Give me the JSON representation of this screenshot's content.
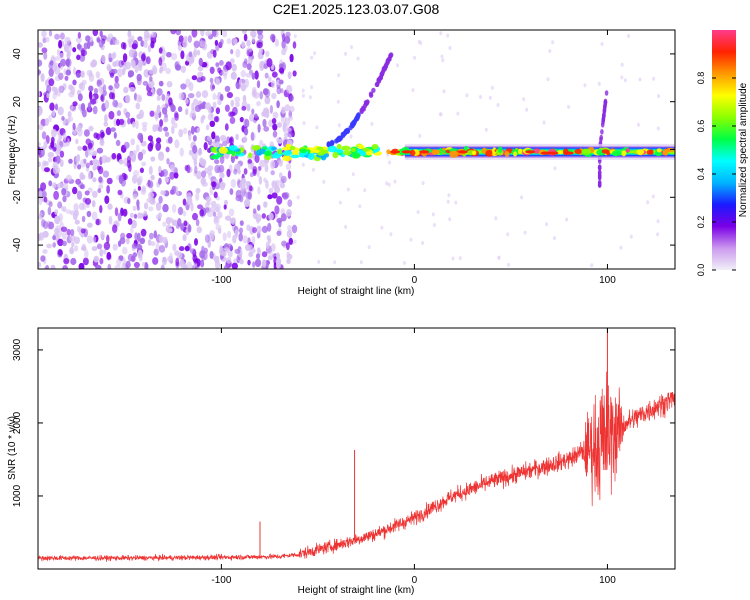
{
  "figure_title": "C2E1.2025.123.03.07.G08",
  "chart_data": [
    {
      "type": "heatmap",
      "title": "C2E1.2025.123.03.07.G08",
      "xlabel": "Height of straight line (km)",
      "ylabel": "Frequency (Hz)",
      "xlim": [
        -195,
        135
      ],
      "ylim": [
        -50,
        50
      ],
      "xticks": [
        -100,
        0,
        100
      ],
      "xtick_labels": [
        "-100",
        "0",
        "100"
      ],
      "yticks": [
        -40,
        -20,
        0,
        20,
        40
      ],
      "ytick_labels": [
        "-40",
        "-20",
        "0",
        "20",
        "40"
      ],
      "colorbar": {
        "label": "Normalized spectral amplitude",
        "range": [
          0,
          1
        ],
        "ticks": [
          0.0,
          0.2,
          0.4,
          0.6,
          0.8
        ],
        "tick_labels": [
          "0.0",
          "0.2",
          "0.4",
          "0.6",
          "0.8"
        ],
        "colors": [
          "#f0f0f8",
          "#cc99ee",
          "#7a00e6",
          "#1a1aff",
          "#00b4ff",
          "#00ffff",
          "#00ff44",
          "#8cff00",
          "#ffff00",
          "#ff9900",
          "#ff2200",
          "#ff3c8c"
        ]
      },
      "features": [
        {
          "name": "scattered noise",
          "x_range": [
            -195,
            -62
          ],
          "freq_range": [
            -50,
            50
          ],
          "amplitude": 0.15
        },
        {
          "name": "main trace",
          "x_range": [
            -105,
            135
          ],
          "freq_center": -1,
          "amplitude": 0.85
        },
        {
          "name": "upper branch",
          "x_range": [
            -45,
            -12
          ],
          "freq_range": [
            2,
            40
          ],
          "amplitude": 0.3
        },
        {
          "name": "spike near 100 km",
          "x": 96,
          "freq_range": [
            -15,
            25
          ],
          "amplitude": 0.3
        }
      ]
    },
    {
      "type": "line",
      "title": "",
      "xlabel": "Height of straight line (km)",
      "ylabel": "SNR (10 * v/v)",
      "xlim": [
        -195,
        135
      ],
      "ylim": [
        0,
        3300
      ],
      "xticks": [
        -100,
        0,
        100
      ],
      "xtick_labels": [
        "-100",
        "0",
        "100"
      ],
      "yticks": [
        1000,
        2000,
        3000
      ],
      "ytick_labels": [
        "1000",
        "2000",
        "3000"
      ],
      "color": "#ee3333",
      "series": [
        {
          "name": "SNR",
          "x": [
            -195,
            -150,
            -100,
            -70,
            -60,
            -40,
            -20,
            0,
            20,
            40,
            60,
            80,
            90,
            95,
            100,
            105,
            110,
            120,
            135
          ],
          "values": [
            150,
            150,
            160,
            170,
            200,
            330,
            480,
            700,
            1000,
            1200,
            1350,
            1500,
            1650,
            1700,
            1800,
            1900,
            2000,
            2150,
            2350
          ]
        }
      ],
      "annotations": [
        {
          "x": -80,
          "value": 650,
          "label": "spike"
        },
        {
          "x": -31,
          "value": 1630,
          "label": "spike"
        },
        {
          "x": 100,
          "value": 3300,
          "label": "peak"
        }
      ]
    }
  ]
}
